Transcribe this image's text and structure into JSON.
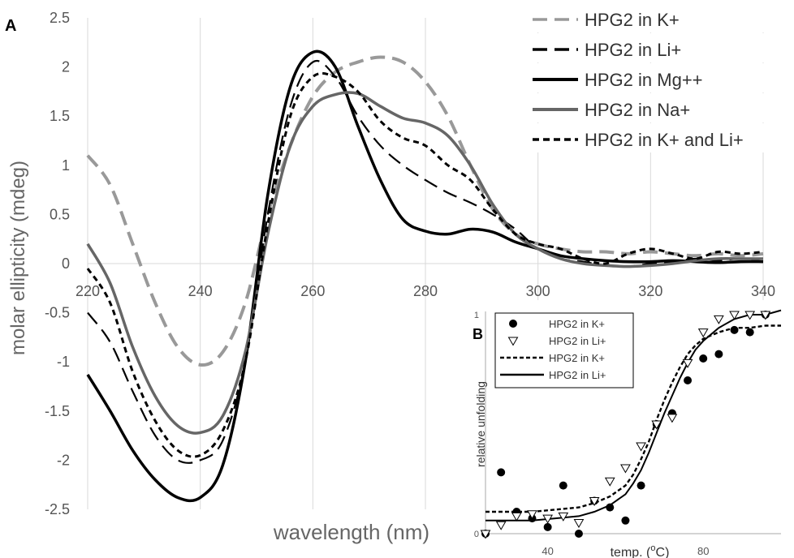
{
  "chart_data": [
    {
      "panel_label": "A",
      "type": "line",
      "xlabel": "wavelength (nm)",
      "ylabel": "molar ellipticity (mdeg)",
      "xlim": [
        220,
        340
      ],
      "ylim": [
        -2.5,
        2.5
      ],
      "xticks": [
        220,
        240,
        260,
        280,
        300,
        320,
        340
      ],
      "yticks": [
        -2.5,
        -2,
        -1.5,
        -1,
        -0.5,
        0,
        0.5,
        1,
        1.5,
        2,
        2.5
      ],
      "xtick_labels": [
        "220",
        "240",
        "260",
        "280",
        "300",
        "320",
        "340"
      ],
      "ytick_labels": [
        "-2.5",
        "-2",
        "-1.5",
        "-1",
        "-0.5",
        "0",
        "0.5",
        "1",
        "1.5",
        "2",
        "2.5"
      ],
      "grid": "vertical",
      "legend": "top-right",
      "series": [
        {
          "name": "HPG2 in K+",
          "color": "#999999",
          "style": "dash-long",
          "x": [
            220,
            224,
            228,
            232,
            236,
            240,
            244,
            248,
            252,
            256,
            260,
            264,
            268,
            272,
            276,
            280,
            284,
            288,
            292,
            296,
            300,
            304,
            308,
            312,
            316,
            320,
            324,
            328,
            332,
            336,
            340
          ],
          "y": [
            1.1,
            0.8,
            0.2,
            -0.4,
            -0.85,
            -1.03,
            -0.9,
            -0.4,
            0.5,
            1.2,
            1.7,
            1.95,
            2.05,
            2.1,
            2.05,
            1.85,
            1.5,
            1.0,
            0.55,
            0.3,
            0.2,
            0.15,
            0.12,
            0.12,
            0.1,
            0.12,
            0.1,
            0.08,
            0.1,
            0.08,
            0.1
          ]
        },
        {
          "name": "HPG2 in Li+",
          "color": "#000000",
          "style": "dash-long",
          "x": [
            220,
            224,
            228,
            232,
            236,
            240,
            244,
            248,
            252,
            256,
            260,
            264,
            268,
            272,
            276,
            280,
            284,
            288,
            292,
            296,
            300,
            304,
            308,
            312,
            316,
            320,
            324,
            328,
            332,
            336,
            340
          ],
          "y": [
            -0.5,
            -0.8,
            -1.3,
            -1.75,
            -2.0,
            -2.0,
            -1.8,
            -1.0,
            0.5,
            1.6,
            2.05,
            1.9,
            1.5,
            1.2,
            1.0,
            0.85,
            0.72,
            0.62,
            0.5,
            0.35,
            0.15,
            0.05,
            0.02,
            -0.02,
            -0.03,
            0.0,
            0.02,
            0.05,
            0.03,
            0.05,
            0.02
          ]
        },
        {
          "name": "HPG2 in Mg++",
          "color": "#000000",
          "style": "solid",
          "x": [
            220,
            224,
            228,
            232,
            236,
            240,
            244,
            248,
            252,
            256,
            260,
            264,
            268,
            272,
            276,
            280,
            284,
            288,
            292,
            296,
            300,
            304,
            308,
            312,
            316,
            320,
            324,
            328,
            332,
            336,
            340
          ],
          "y": [
            -1.13,
            -1.5,
            -1.9,
            -2.2,
            -2.38,
            -2.38,
            -2.05,
            -1.0,
            0.7,
            1.8,
            2.15,
            2.0,
            1.4,
            0.85,
            0.45,
            0.33,
            0.3,
            0.35,
            0.32,
            0.22,
            0.15,
            0.08,
            0.05,
            0.03,
            0.02,
            0.02,
            0.03,
            0.02,
            0.01,
            0.02,
            0.02
          ]
        },
        {
          "name": "HPG2 in Na+",
          "color": "#666666",
          "style": "solid",
          "x": [
            220,
            224,
            228,
            232,
            236,
            240,
            244,
            248,
            252,
            256,
            260,
            264,
            268,
            272,
            276,
            280,
            284,
            288,
            292,
            296,
            300,
            304,
            308,
            312,
            316,
            320,
            324,
            328,
            332,
            336,
            340
          ],
          "y": [
            0.2,
            -0.2,
            -0.85,
            -1.35,
            -1.65,
            -1.72,
            -1.55,
            -0.9,
            0.3,
            1.2,
            1.6,
            1.72,
            1.73,
            1.6,
            1.48,
            1.43,
            1.3,
            1.0,
            0.6,
            0.3,
            0.15,
            0.05,
            0.0,
            -0.02,
            -0.03,
            -0.02,
            0.0,
            0.03,
            0.05,
            0.05,
            0.05
          ]
        },
        {
          "name": "HPG2 in K+ and Li+",
          "color": "#000000",
          "style": "dash-short",
          "x": [
            220,
            224,
            228,
            232,
            236,
            240,
            244,
            248,
            252,
            256,
            260,
            264,
            268,
            272,
            276,
            280,
            284,
            288,
            292,
            296,
            300,
            304,
            308,
            312,
            316,
            320,
            324,
            328,
            332,
            336,
            340
          ],
          "y": [
            -0.05,
            -0.4,
            -1.1,
            -1.6,
            -1.9,
            -1.95,
            -1.7,
            -1.0,
            0.4,
            1.5,
            1.9,
            1.9,
            1.75,
            1.45,
            1.28,
            1.2,
            1.0,
            0.85,
            0.55,
            0.3,
            0.2,
            0.15,
            0.05,
            0.0,
            0.1,
            0.15,
            0.1,
            0.05,
            0.12,
            0.1,
            0.12
          ]
        }
      ]
    },
    {
      "panel_label": "B",
      "type": "scatter",
      "xlabel": "relative unfolding",
      "ylabel_text": "relative unfolding",
      "xlabel_text": "temp. (°C)",
      "xlabel_pre": "temp. (",
      "xlabel_sup": "o",
      "xlabel_post": "C)",
      "ytick_labels": [
        "0",
        "1"
      ],
      "xtick_labels": [
        "40",
        "80"
      ],
      "xlim": [
        24,
        100
      ],
      "ylim": [
        0,
        1
      ],
      "legend": "top-left",
      "series": [
        {
          "name": "HPG2 in K+",
          "kind": "points",
          "marker": "filled-circle",
          "color": "#000000",
          "x": [
            24,
            28,
            32,
            36,
            40,
            44,
            48,
            52,
            56,
            60,
            64,
            68,
            72,
            76,
            80,
            84,
            88,
            92,
            96
          ],
          "y": [
            0,
            0.28,
            0.1,
            0.07,
            0.03,
            0.22,
            0.0,
            0.15,
            0.12,
            0.06,
            0.22,
            0.5,
            0.55,
            0.7,
            0.8,
            0.82,
            0.93,
            0.92,
            1.0
          ]
        },
        {
          "name": "HPG2 in Li+",
          "kind": "points",
          "marker": "open-triangle",
          "color": "#000000",
          "x": [
            24,
            28,
            32,
            36,
            40,
            44,
            48,
            52,
            56,
            60,
            64,
            68,
            72,
            76,
            80,
            84,
            88,
            92,
            96
          ],
          "y": [
            0,
            0.04,
            0.08,
            0.09,
            0.07,
            0.08,
            0.05,
            0.15,
            0.24,
            0.3,
            0.4,
            0.5,
            0.53,
            0.78,
            0.92,
            0.98,
            1.0,
            1.0,
            1.0
          ]
        },
        {
          "name": "HPG2 in K+",
          "kind": "fit",
          "style": "dash-short",
          "color": "#000000",
          "x": [
            24,
            30,
            36,
            42,
            48,
            52,
            56,
            60,
            62,
            64,
            66,
            68,
            70,
            72,
            74,
            76,
            78,
            80,
            84,
            88,
            92,
            96,
            100
          ],
          "y": [
            0.1,
            0.1,
            0.1,
            0.11,
            0.12,
            0.14,
            0.17,
            0.22,
            0.27,
            0.34,
            0.42,
            0.52,
            0.61,
            0.69,
            0.76,
            0.82,
            0.86,
            0.89,
            0.92,
            0.94,
            0.94,
            0.95,
            0.95
          ]
        },
        {
          "name": "HPG2 in Li+",
          "kind": "fit",
          "style": "solid",
          "color": "#000000",
          "x": [
            24,
            30,
            36,
            42,
            48,
            52,
            56,
            60,
            62,
            64,
            66,
            68,
            70,
            72,
            74,
            76,
            78,
            80,
            84,
            88,
            92,
            96,
            100
          ],
          "y": [
            0.06,
            0.06,
            0.06,
            0.07,
            0.08,
            0.1,
            0.13,
            0.18,
            0.23,
            0.29,
            0.37,
            0.46,
            0.55,
            0.63,
            0.71,
            0.78,
            0.84,
            0.88,
            0.94,
            0.98,
            1.0,
            1.0,
            1.02
          ]
        }
      ]
    }
  ]
}
